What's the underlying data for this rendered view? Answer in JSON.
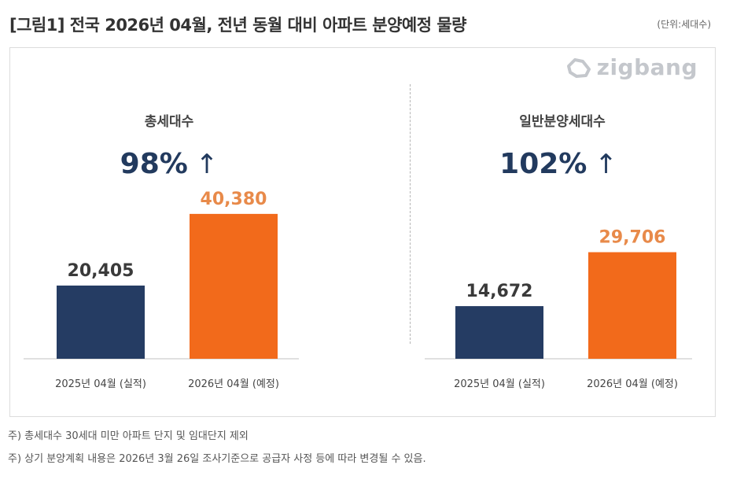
{
  "header": {
    "title": "[그림1] 전국 2026년 04월, 전년 동월 대비 아파트 분양예정 물량",
    "unit": "(단위:세대수)"
  },
  "logo": {
    "text": "zigbang",
    "icon": "zigbang-logo-icon"
  },
  "colors": {
    "actual": "#253c63",
    "planned": "#f26a1b",
    "planned_label": "#e88a4a",
    "actual_label": "#3a3a3a",
    "pct": "#223a5e",
    "baseline": "#d5d5d5"
  },
  "chart_data": [
    {
      "type": "bar",
      "title": "총세대수",
      "change_label": "98%",
      "change_icon": "arrow-up-icon",
      "categories": [
        "2025년 04월 (실적)",
        "2026년 04월 (예정)"
      ],
      "values": [
        20405,
        40380
      ],
      "value_labels": [
        "20,405",
        "40,380"
      ],
      "xlabel": "",
      "ylabel": "",
      "ylim": [
        0,
        50000
      ],
      "grid": false,
      "legend": "none"
    },
    {
      "type": "bar",
      "title": "일반분양세대수",
      "change_label": "102%",
      "change_icon": "arrow-up-icon",
      "categories": [
        "2025년 04월 (실적)",
        "2026년 04월 (예정)"
      ],
      "values": [
        14672,
        29706
      ],
      "value_labels": [
        "14,672",
        "29,706"
      ],
      "xlabel": "",
      "ylabel": "",
      "ylim": [
        0,
        50000
      ],
      "grid": false,
      "legend": "none"
    }
  ],
  "footnotes": [
    "주) 총세대수 30세대 미만 아파트  단지 및 임대단지 제외",
    "주) 상기 분양계획 내용은 2026년 3월 26일 조사기준으로 공급자 사정 등에 따라 변경될 수 있음."
  ]
}
